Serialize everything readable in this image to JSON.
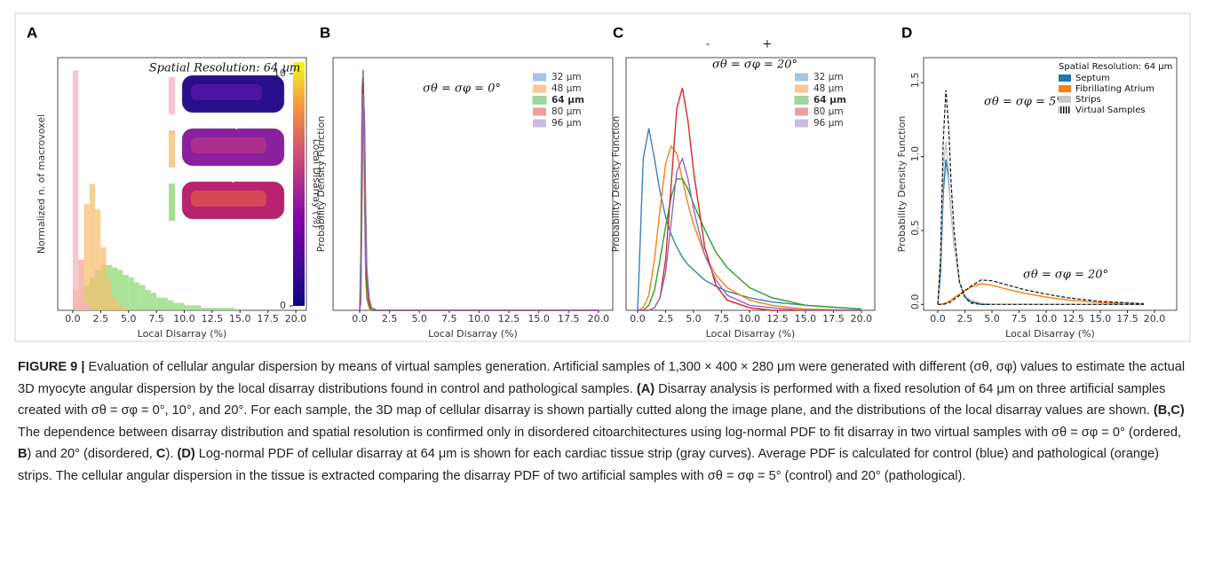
{
  "chart_data": [
    {
      "type": "histogram",
      "label": "A",
      "ylabel": "Normalized n. of macrovoxel",
      "xlabel": "Local Disarray (%)",
      "annotations": [
        "Spatial Resolution: 64 µm"
      ],
      "xlim": [
        -1.35,
        20.95
      ],
      "ylim": [
        0,
        1
      ],
      "xticks": [
        {
          "value": 0,
          "label": "0.0"
        },
        2.5,
        {
          "value": 5,
          "label": "5.0"
        },
        7.5,
        {
          "value": 10,
          "label": "10.0"
        },
        12.5,
        {
          "value": 15,
          "label": "15.0"
        },
        17.5,
        {
          "value": 20,
          "label": "20.0"
        }
      ],
      "colorbar": {
        "label": "Local Disarray (%)",
        "lim": [
          0,
          10.5
        ],
        "ticks": [
          0,
          10
        ]
      },
      "bins": [
        0,
        0.5,
        1,
        1.5,
        2,
        2.5,
        3,
        3.5,
        4,
        4.5,
        5,
        5.5,
        6,
        6.5,
        7,
        7.5,
        8,
        8.5,
        9,
        9.5,
        10,
        10.5,
        11,
        11.5,
        12,
        12.5,
        13,
        13.5,
        14,
        14.5,
        15,
        15.5,
        16,
        16.5,
        17,
        17.5,
        18,
        18.5,
        19,
        19.5,
        20
      ],
      "series": [
        {
          "name": "σθ = σφ = 20°",
          "color": "#8fd977",
          "values": [
            0.02,
            0.06,
            0.1,
            0.13,
            0.16,
            0.18,
            0.18,
            0.17,
            0.16,
            0.14,
            0.13,
            0.11,
            0.1,
            0.08,
            0.07,
            0.05,
            0.05,
            0.04,
            0.03,
            0.03,
            0.02,
            0.02,
            0.02,
            0.01,
            0.01,
            0.01,
            0.01,
            0.01,
            0.01,
            0,
            0,
            0,
            0,
            0,
            0,
            0,
            0,
            0,
            0,
            0
          ]
        },
        {
          "name": "σθ = σφ = 10°",
          "color": "#f5c070",
          "values": [
            0.08,
            0.2,
            0.42,
            0.5,
            0.4,
            0.25,
            0.12,
            0.05,
            0.02,
            0.01,
            0,
            0,
            0,
            0,
            0,
            0,
            0,
            0,
            0,
            0,
            0,
            0,
            0,
            0,
            0,
            0,
            0,
            0,
            0,
            0,
            0,
            0,
            0,
            0,
            0,
            0,
            0,
            0,
            0,
            0
          ]
        },
        {
          "name": "σθ = σφ = 0°",
          "color": "#f7b3c0",
          "values": [
            0.95,
            0.2,
            0.03,
            0,
            0,
            0,
            0,
            0,
            0,
            0,
            0,
            0,
            0,
            0,
            0,
            0,
            0,
            0,
            0,
            0,
            0,
            0,
            0,
            0,
            0,
            0,
            0,
            0,
            0,
            0,
            0,
            0,
            0,
            0,
            0,
            0,
            0,
            0,
            0,
            0
          ]
        }
      ]
    },
    {
      "type": "line",
      "label": "B",
      "ylabel": "Probability Density Function",
      "xlabel": "Local Disarray (%)",
      "annotations": [
        "σθ = σφ = 0°"
      ],
      "xlim": [
        -2.23,
        21.2
      ],
      "ylim": [
        0,
        1.05
      ],
      "xticks": [
        {
          "value": 0,
          "label": "0.0"
        },
        2.5,
        {
          "value": 5,
          "label": "5.0"
        },
        7.5,
        {
          "value": 10,
          "label": "10.0"
        },
        12.5,
        {
          "value": 15,
          "label": "15.0"
        },
        17.5,
        {
          "value": 20,
          "label": "20.0"
        }
      ],
      "x": [
        0,
        0.1,
        0.2,
        0.3,
        0.4,
        0.5,
        0.6,
        0.8,
        1,
        1.5,
        2,
        20
      ],
      "series": [
        {
          "name": "32 µm",
          "color": "#3a7fc1",
          "values": [
            0,
            0.25,
            0.92,
            1.0,
            0.5,
            0.15,
            0.05,
            0.01,
            0,
            0,
            0,
            0
          ]
        },
        {
          "name": "48 µm",
          "color": "#ff7f0e",
          "values": [
            0,
            0.15,
            0.8,
            0.98,
            0.62,
            0.22,
            0.07,
            0.01,
            0,
            0,
            0,
            0
          ]
        },
        {
          "name": "64 µm",
          "color": "#2ca02c",
          "bold": true,
          "values": [
            0,
            0.1,
            0.7,
            0.97,
            0.7,
            0.3,
            0.1,
            0.02,
            0,
            0,
            0,
            0
          ]
        },
        {
          "name": "80 µm",
          "color": "#d62728",
          "values": [
            0,
            0.05,
            0.55,
            0.95,
            0.78,
            0.38,
            0.14,
            0.03,
            0.01,
            0,
            0,
            0
          ]
        },
        {
          "name": "96 µm",
          "color": "#9467bd",
          "values": [
            0,
            0.03,
            0.45,
            0.9,
            0.82,
            0.45,
            0.18,
            0.05,
            0.01,
            0,
            0,
            0
          ]
        }
      ]
    },
    {
      "type": "line",
      "label": "C",
      "ylabel": "Probability Density Function",
      "xlabel": "Local Disarray (%)",
      "annotations": [
        "σθ = σφ = 20°",
        "-",
        "+"
      ],
      "xlim": [
        -1.03,
        21.2
      ],
      "ylim": [
        0,
        1
      ],
      "xticks": [
        {
          "value": 0,
          "label": "0.0"
        },
        2.5,
        {
          "value": 5,
          "label": "5.0"
        },
        7.5,
        {
          "value": 10,
          "label": "10.0"
        },
        12.5,
        {
          "value": 15,
          "label": "15.0"
        },
        17.5,
        {
          "value": 20,
          "label": "20.0"
        }
      ],
      "x": [
        0,
        0.5,
        1,
        1.5,
        2,
        2.5,
        3,
        3.5,
        4,
        4.5,
        5,
        6,
        7,
        8,
        10,
        12,
        15,
        20
      ],
      "series": [
        {
          "name": "32 µm",
          "color": "#3a7fc1",
          "values": [
            0,
            0.6,
            0.72,
            0.6,
            0.47,
            0.37,
            0.3,
            0.25,
            0.21,
            0.18,
            0.16,
            0.12,
            0.095,
            0.075,
            0.05,
            0.033,
            0.02,
            0.005
          ]
        },
        {
          "name": "48 µm",
          "color": "#ff7f0e",
          "values": [
            0,
            0.01,
            0.06,
            0.2,
            0.4,
            0.58,
            0.65,
            0.62,
            0.52,
            0.42,
            0.34,
            0.22,
            0.14,
            0.09,
            0.04,
            0.02,
            0.005,
            0
          ]
        },
        {
          "name": "64 µm",
          "color": "#2ca02c",
          "bold": true,
          "values": [
            0,
            0,
            0.02,
            0.08,
            0.2,
            0.33,
            0.45,
            0.52,
            0.52,
            0.48,
            0.42,
            0.32,
            0.23,
            0.17,
            0.09,
            0.05,
            0.02,
            0.005
          ]
        },
        {
          "name": "80 µm",
          "color": "#d62728",
          "values": [
            0,
            0,
            0,
            0.01,
            0.05,
            0.2,
            0.5,
            0.8,
            0.88,
            0.75,
            0.55,
            0.25,
            0.1,
            0.04,
            0.01,
            0,
            0,
            0
          ]
        },
        {
          "name": "96 µm",
          "color": "#9467bd",
          "values": [
            0,
            0,
            0,
            0.01,
            0.05,
            0.15,
            0.35,
            0.55,
            0.6,
            0.52,
            0.4,
            0.22,
            0.12,
            0.06,
            0.02,
            0.01,
            0,
            0
          ]
        }
      ]
    },
    {
      "type": "line",
      "label": "D",
      "ylabel": "Probability Density Function",
      "xlabel": "Local Disarray (%)",
      "legend_title": "Spatial Resolution: 64 µm",
      "annotations": [
        "σθ = σφ = 5°",
        "σθ = σφ = 20°"
      ],
      "xlim": [
        -1.31,
        22.05
      ],
      "ylim": [
        -0.04,
        1.67
      ],
      "xticks": [
        {
          "value": 0,
          "label": "0.0"
        },
        2.5,
        {
          "value": 5,
          "label": "5.0"
        },
        7.5,
        {
          "value": 10,
          "label": "10.0"
        },
        12.5,
        {
          "value": 15,
          "label": "15.0"
        },
        17.5,
        {
          "value": 20,
          "label": "20.0"
        }
      ],
      "yticks": [
        {
          "value": 0,
          "label": "0.0"
        },
        0.5,
        {
          "value": 1,
          "label": "1.0"
        },
        1.5
      ],
      "x": [
        0,
        0.25,
        0.5,
        0.75,
        1,
        1.25,
        1.5,
        2,
        2.5,
        3,
        4,
        5,
        6,
        8,
        10,
        12,
        15,
        19
      ],
      "series": [
        {
          "name": "Septum",
          "color": "#1f77b4",
          "values": [
            0,
            0.2,
            0.75,
            0.98,
            0.85,
            0.6,
            0.4,
            0.15,
            0.05,
            0.02,
            0,
            0,
            0,
            0,
            0,
            0,
            0,
            0
          ]
        },
        {
          "name": "Fibrillating Atrium",
          "color": "#ff7f0e",
          "values": [
            0,
            0,
            0.005,
            0.01,
            0.02,
            0.03,
            0.045,
            0.07,
            0.095,
            0.115,
            0.14,
            0.13,
            0.11,
            0.075,
            0.05,
            0.03,
            0.012,
            0.002
          ]
        },
        {
          "name": "Strips",
          "color": "#c8c8c8",
          "values": [
            0,
            0.3,
            0.9,
            1.1,
            0.9,
            0.6,
            0.4,
            0.15,
            0.06,
            0.03,
            0.01,
            0,
            0,
            0,
            0,
            0,
            0,
            0
          ]
        },
        {
          "name": "Virtual Samples",
          "color": "#111111",
          "dash": true,
          "values": [
            [
              0,
              0.3,
              1.1,
              1.45,
              1.2,
              0.8,
              0.5,
              0.15,
              0.05,
              0.01,
              0,
              0,
              0,
              0,
              0,
              0,
              0,
              0
            ],
            [
              0,
              0,
              0,
              0.005,
              0.01,
              0.02,
              0.035,
              0.06,
              0.09,
              0.12,
              0.165,
              0.16,
              0.14,
              0.1,
              0.07,
              0.045,
              0.02,
              0.005
            ]
          ]
        }
      ]
    }
  ],
  "caption": {
    "runs": [
      {
        "text": "FIGURE 9 |",
        "bold": true
      },
      {
        "text": " Evaluation of cellular angular dispersion by means of virtual samples generation. Artificial samples of 1,300 × 400 × 280 μm were generated with different (σθ, σφ) values to estimate the actual 3D myocyte angular dispersion by the local disarray distributions found in control and pathological samples. "
      },
      {
        "text": "(A)",
        "bold": true
      },
      {
        "text": " Disarray analysis is performed with a fixed resolution of 64 μm on three artificial samples created with σθ = σφ = 0°, 10°, and 20°. For each sample, the 3D map of cellular disarray is shown partially cutted along the image plane, and the distributions of the local disarray values are shown. "
      },
      {
        "text": "(B,C)",
        "bold": true
      },
      {
        "text": " The dependence between disarray distribution and spatial resolution is confirmed only in disordered citoarchitectures using log-normal PDF to fit disarray in two virtual samples with σθ = σφ = 0° (ordered, "
      },
      {
        "text": "B",
        "bold": true
      },
      {
        "text": ") and 20° (disordered, "
      },
      {
        "text": "C",
        "bold": true
      },
      {
        "text": "). "
      },
      {
        "text": "(D)",
        "bold": true
      },
      {
        "text": " Log-normal PDF of cellular disarray at 64 μm is shown for each cardiac tissue strip (gray curves). Average PDF is calculated for control (blue) and pathological (orange) strips. The cellular angular dispersion in the tissue is extracted comparing the disarray PDF of two artificial samples with σθ = σφ = 5° (control) and 20° (pathological)."
      }
    ]
  }
}
